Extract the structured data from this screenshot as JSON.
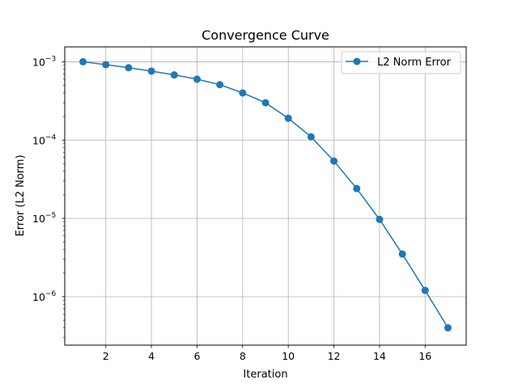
{
  "chart_data": {
    "type": "line",
    "title": "Convergence Curve",
    "xlabel": "Iteration",
    "ylabel": "Error (L2 Norm)",
    "yscale": "log",
    "xlim": [
      0.2,
      17.8
    ],
    "ylim": [
      2.4e-07,
      0.00155
    ],
    "x_ticks": [
      2,
      4,
      6,
      8,
      10,
      12,
      14,
      16
    ],
    "y_ticks": [
      {
        "value": 1e-06,
        "base": "10",
        "exp": "−6"
      },
      {
        "value": 1e-05,
        "base": "10",
        "exp": "−5"
      },
      {
        "value": 0.0001,
        "base": "10",
        "exp": "−4"
      },
      {
        "value": 0.001,
        "base": "10",
        "exp": "−3"
      }
    ],
    "grid": true,
    "legend_position": "upper right",
    "series": [
      {
        "name": "L2 Norm Error",
        "color": "#1f77b4",
        "marker": "circle",
        "x": [
          1,
          2,
          3,
          4,
          5,
          6,
          7,
          8,
          9,
          10,
          11,
          12,
          13,
          14,
          15,
          16,
          17
        ],
        "y": [
          0.001,
          0.00092,
          0.00084,
          0.00076,
          0.00068,
          0.0006,
          0.00051,
          0.0004,
          0.0003,
          0.00019,
          0.00011,
          5.4e-05,
          2.4e-05,
          9.7e-06,
          3.5e-06,
          1.2e-06,
          4e-07
        ]
      }
    ]
  }
}
